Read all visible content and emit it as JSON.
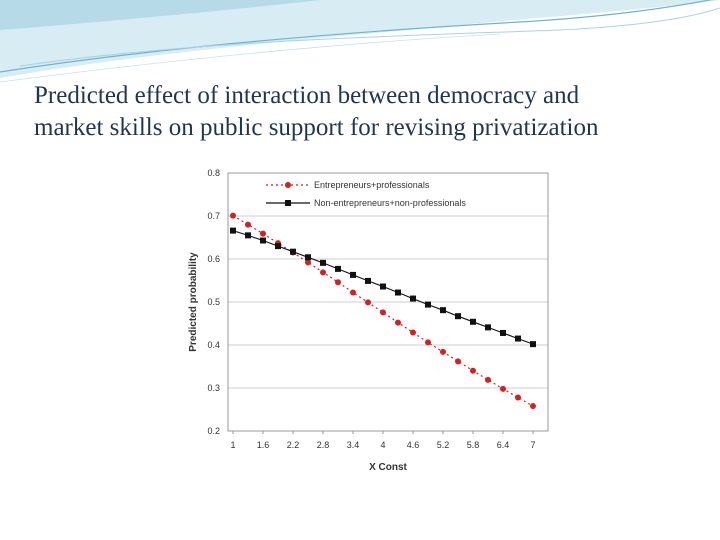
{
  "slide": {
    "title_line1": "Predicted effect of interaction between democracy and",
    "title_line2": "market skills on public support for revising privatization"
  },
  "colors": {
    "title": "#1f3550",
    "decor_light": "#d7ecf3",
    "decor_mid": "#a9d3e4",
    "decor_dark": "#6fb3cf",
    "series1": "#d42020",
    "series2": "#111111",
    "grid": "#cfcfcf",
    "plot_border": "#9a9a9a"
  },
  "chart_data": {
    "type": "line",
    "xlabel": "X Const",
    "ylabel": "Predicted probability",
    "ylim": [
      0.2,
      0.8
    ],
    "yticks": [
      "0.2",
      "0.3",
      "0.4",
      "0.5",
      "0.6",
      "0.7",
      "0.8"
    ],
    "xtick_labels": [
      "1",
      "1.6",
      "2.2",
      "2.8",
      "3.4",
      "4",
      "4.6",
      "5.2",
      "5.8",
      "6.4",
      "7"
    ],
    "grid": true,
    "legend_position": "top",
    "x": [
      1,
      1.3,
      1.6,
      1.9,
      2.2,
      2.5,
      2.8,
      3.1,
      3.4,
      3.7,
      4,
      4.3,
      4.6,
      4.9,
      5.2,
      5.5,
      5.8,
      6.1,
      6.4,
      6.7,
      7
    ],
    "series": [
      {
        "name": "Entrepreneurs+professionals",
        "marker": "circle",
        "line": "dotted",
        "values": [
          0.701,
          0.68,
          0.659,
          0.637,
          0.615,
          0.592,
          0.569,
          0.546,
          0.522,
          0.499,
          0.476,
          0.452,
          0.429,
          0.406,
          0.384,
          0.362,
          0.34,
          0.319,
          0.298,
          0.278,
          0.258
        ]
      },
      {
        "name": "Non-entrepreneurs+non-professionals",
        "marker": "square",
        "line": "solid",
        "values": [
          0.666,
          0.655,
          0.643,
          0.63,
          0.617,
          0.604,
          0.591,
          0.577,
          0.563,
          0.549,
          0.536,
          0.522,
          0.508,
          0.494,
          0.481,
          0.467,
          0.454,
          0.441,
          0.428,
          0.415,
          0.402
        ]
      }
    ]
  }
}
